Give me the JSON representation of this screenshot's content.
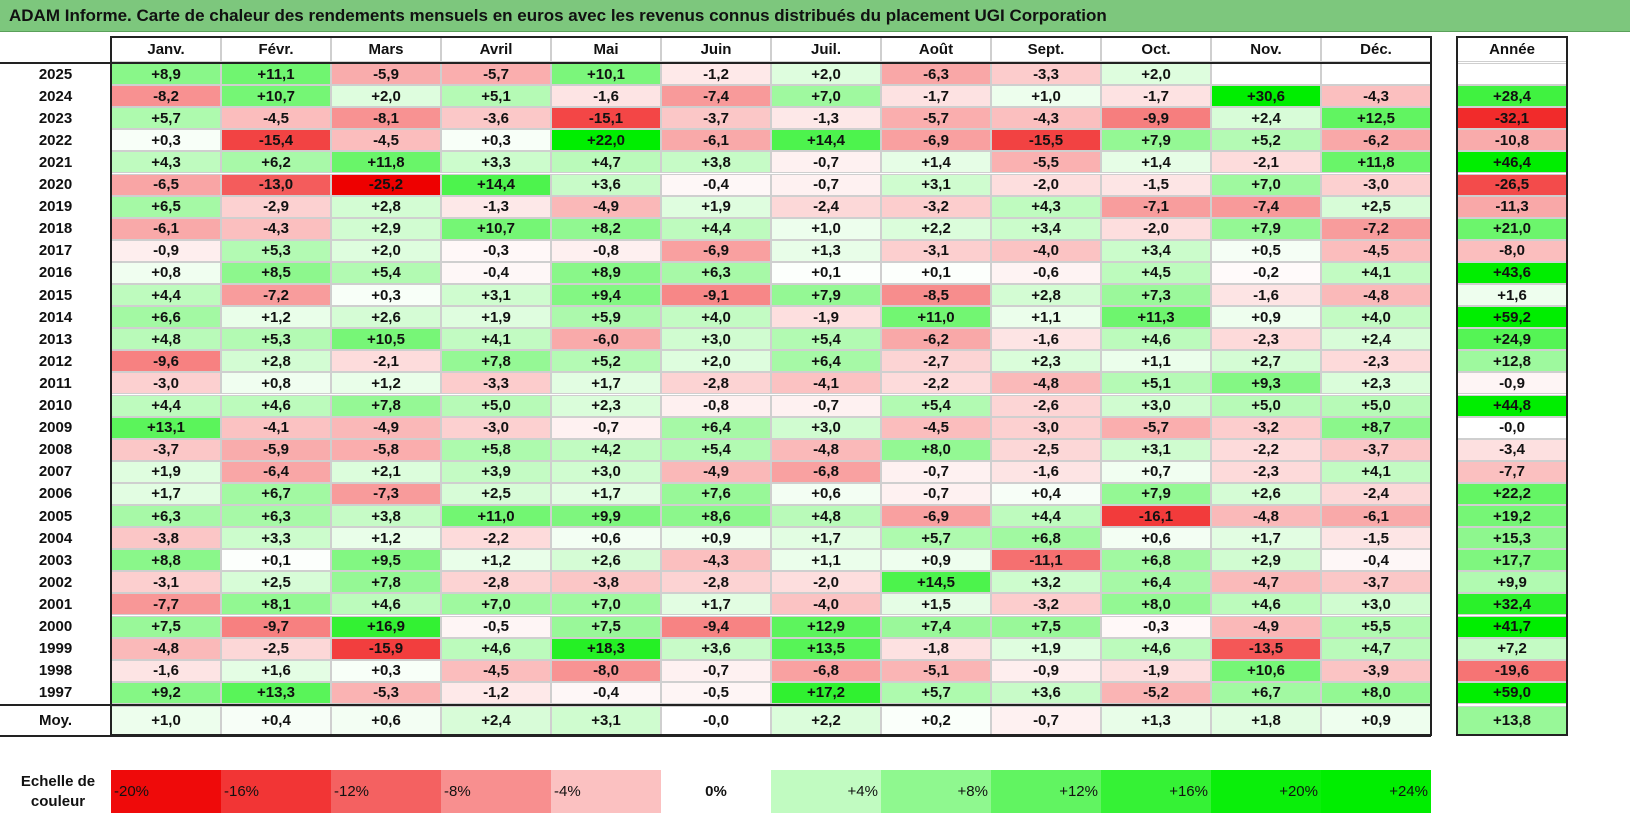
{
  "title": "ADAM Informe. Carte de chaleur des rendements mensuels en euros avec les revenus connus distribués du placement UGI Corporation",
  "chart_data": {
    "type": "heatmap",
    "title": "ADAM Informe. Carte de chaleur des rendements mensuels en euros avec les revenus connus distribués du placement UGI Corporation",
    "columns": [
      "Janv.",
      "Févr.",
      "Mars",
      "Avril",
      "Mai",
      "Juin",
      "Juil.",
      "Août",
      "Sept.",
      "Oct.",
      "Nov.",
      "Déc."
    ],
    "year_column_label": "Année",
    "average_row_label": "Moy.",
    "rows": [
      {
        "year": "2025",
        "values": [
          "+8,9",
          "+11,1",
          "-5,9",
          "-5,7",
          "+10,1",
          "-1,2",
          "+2,0",
          "-6,3",
          "-3,3",
          "+2,0",
          "",
          ""
        ],
        "annual": ""
      },
      {
        "year": "2024",
        "values": [
          "-8,2",
          "+10,7",
          "+2,0",
          "+5,1",
          "-1,6",
          "-7,4",
          "+7,0",
          "-1,7",
          "+1,0",
          "-1,7",
          "+30,6",
          "-4,3"
        ],
        "annual": "+28,4"
      },
      {
        "year": "2023",
        "values": [
          "+5,7",
          "-4,5",
          "-8,1",
          "-3,6",
          "-15,1",
          "-3,7",
          "-1,3",
          "-5,7",
          "-4,3",
          "-9,9",
          "+2,4",
          "+12,5"
        ],
        "annual": "-32,1"
      },
      {
        "year": "2022",
        "values": [
          "+0,3",
          "-15,4",
          "-4,5",
          "+0,3",
          "+22,0",
          "-6,1",
          "+14,4",
          "-6,9",
          "-15,5",
          "+7,9",
          "+5,2",
          "-6,2"
        ],
        "annual": "-10,8"
      },
      {
        "year": "2021",
        "values": [
          "+4,3",
          "+6,2",
          "+11,8",
          "+3,3",
          "+4,7",
          "+3,8",
          "-0,7",
          "+1,4",
          "-5,5",
          "+1,4",
          "-2,1",
          "+11,8"
        ],
        "annual": "+46,4"
      },
      {
        "year": "2020",
        "values": [
          "-6,5",
          "-13,0",
          "-25,2",
          "+14,4",
          "+3,6",
          "-0,4",
          "-0,7",
          "+3,1",
          "-2,0",
          "-1,5",
          "+7,0",
          "-3,0"
        ],
        "annual": "-26,5"
      },
      {
        "year": "2019",
        "values": [
          "+6,5",
          "-2,9",
          "+2,8",
          "-1,3",
          "-4,9",
          "+1,9",
          "-2,4",
          "-3,2",
          "+4,3",
          "-7,1",
          "-7,4",
          "+2,5"
        ],
        "annual": "-11,3"
      },
      {
        "year": "2018",
        "values": [
          "-6,1",
          "-4,3",
          "+2,9",
          "+10,7",
          "+8,2",
          "+4,4",
          "+1,0",
          "+2,2",
          "+3,4",
          "-2,0",
          "+7,9",
          "-7,2"
        ],
        "annual": "+21,0"
      },
      {
        "year": "2017",
        "values": [
          "-0,9",
          "+5,3",
          "+2,0",
          "-0,3",
          "-0,8",
          "-6,9",
          "+1,3",
          "-3,1",
          "-4,0",
          "+3,4",
          "+0,5",
          "-4,5"
        ],
        "annual": "-8,0"
      },
      {
        "year": "2016",
        "values": [
          "+0,8",
          "+8,5",
          "+5,4",
          "-0,4",
          "+8,9",
          "+6,3",
          "+0,1",
          "+0,1",
          "-0,6",
          "+4,5",
          "-0,2",
          "+4,1"
        ],
        "annual": "+43,6"
      },
      {
        "year": "2015",
        "values": [
          "+4,4",
          "-7,2",
          "+0,3",
          "+3,1",
          "+9,4",
          "-9,1",
          "+7,9",
          "-8,5",
          "+2,8",
          "+7,3",
          "-1,6",
          "-4,8"
        ],
        "annual": "+1,6"
      },
      {
        "year": "2014",
        "values": [
          "+6,6",
          "+1,2",
          "+2,6",
          "+1,9",
          "+5,9",
          "+4,0",
          "-1,9",
          "+11,0",
          "+1,1",
          "+11,3",
          "+0,9",
          "+4,0"
        ],
        "annual": "+59,2"
      },
      {
        "year": "2013",
        "values": [
          "+4,8",
          "+5,3",
          "+10,5",
          "+4,1",
          "-6,0",
          "+3,0",
          "+5,4",
          "-6,2",
          "-1,6",
          "+4,6",
          "-2,3",
          "+2,4"
        ],
        "annual": "+24,9"
      },
      {
        "year": "2012",
        "values": [
          "-9,6",
          "+2,8",
          "-2,1",
          "+7,8",
          "+5,2",
          "+2,0",
          "+6,4",
          "-2,7",
          "+2,3",
          "+1,1",
          "+2,7",
          "-2,3"
        ],
        "annual": "+12,8"
      },
      {
        "year": "2011",
        "values": [
          "-3,0",
          "+0,8",
          "+1,2",
          "-3,3",
          "+1,7",
          "-2,8",
          "-4,1",
          "-2,2",
          "-4,8",
          "+5,1",
          "+9,3",
          "+2,3"
        ],
        "annual": "-0,9"
      },
      {
        "year": "2010",
        "values": [
          "+4,4",
          "+4,6",
          "+7,8",
          "+5,0",
          "+2,3",
          "-0,8",
          "-0,7",
          "+5,4",
          "-2,6",
          "+3,0",
          "+5,0",
          "+5,0"
        ],
        "annual": "+44,8"
      },
      {
        "year": "2009",
        "values": [
          "+13,1",
          "-4,1",
          "-4,9",
          "-3,0",
          "-0,7",
          "+6,4",
          "+3,0",
          "-4,5",
          "-3,0",
          "-5,7",
          "-3,2",
          "+8,7"
        ],
        "annual": "-0,0"
      },
      {
        "year": "2008",
        "values": [
          "-3,7",
          "-5,9",
          "-5,8",
          "+5,8",
          "+4,2",
          "+5,4",
          "-4,8",
          "+8,0",
          "-2,5",
          "+3,1",
          "-2,2",
          "-3,7"
        ],
        "annual": "-3,4"
      },
      {
        "year": "2007",
        "values": [
          "+1,9",
          "-6,4",
          "+2,1",
          "+3,9",
          "+3,0",
          "-4,9",
          "-6,8",
          "-0,7",
          "-1,6",
          "+0,7",
          "-2,3",
          "+4,1"
        ],
        "annual": "-7,7"
      },
      {
        "year": "2006",
        "values": [
          "+1,7",
          "+6,7",
          "-7,3",
          "+2,5",
          "+1,7",
          "+7,6",
          "+0,6",
          "-0,7",
          "+0,4",
          "+7,9",
          "+2,6",
          "-2,4"
        ],
        "annual": "+22,2"
      },
      {
        "year": "2005",
        "values": [
          "+6,3",
          "+6,3",
          "+3,8",
          "+11,0",
          "+9,9",
          "+8,6",
          "+4,8",
          "-6,9",
          "+4,4",
          "-16,1",
          "-4,8",
          "-6,1"
        ],
        "annual": "+19,2"
      },
      {
        "year": "2004",
        "values": [
          "-3,8",
          "+3,3",
          "+1,2",
          "-2,2",
          "+0,6",
          "+0,9",
          "+1,7",
          "+5,7",
          "+6,8",
          "+0,6",
          "+1,7",
          "-1,5"
        ],
        "annual": "+15,3"
      },
      {
        "year": "2003",
        "values": [
          "+8,8",
          "+0,1",
          "+9,5",
          "+1,2",
          "+2,6",
          "-4,3",
          "+1,1",
          "+0,9",
          "-11,1",
          "+6,8",
          "+2,9",
          "-0,4"
        ],
        "annual": "+17,7"
      },
      {
        "year": "2002",
        "values": [
          "-3,1",
          "+2,5",
          "+7,8",
          "-2,8",
          "-3,8",
          "-2,8",
          "-2,0",
          "+14,5",
          "+3,2",
          "+6,4",
          "-4,7",
          "-3,7"
        ],
        "annual": "+9,9"
      },
      {
        "year": "2001",
        "values": [
          "-7,7",
          "+8,1",
          "+4,6",
          "+7,0",
          "+7,0",
          "+1,7",
          "-4,0",
          "+1,5",
          "-3,2",
          "+8,0",
          "+4,6",
          "+3,0"
        ],
        "annual": "+32,4"
      },
      {
        "year": "2000",
        "values": [
          "+7,5",
          "-9,7",
          "+16,9",
          "-0,5",
          "+7,5",
          "-9,4",
          "+12,9",
          "+7,4",
          "+7,5",
          "-0,3",
          "-4,9",
          "+5,5"
        ],
        "annual": "+41,7"
      },
      {
        "year": "1999",
        "values": [
          "-4,8",
          "-2,5",
          "-15,9",
          "+4,6",
          "+18,3",
          "+3,6",
          "+13,5",
          "-1,8",
          "+1,9",
          "+4,6",
          "-13,5",
          "+4,7"
        ],
        "annual": "+7,2"
      },
      {
        "year": "1998",
        "values": [
          "-1,6",
          "+1,6",
          "+0,3",
          "-4,5",
          "-8,0",
          "-0,7",
          "-6,8",
          "-5,1",
          "-0,9",
          "-1,9",
          "+10,6",
          "-3,9"
        ],
        "annual": "-19,6"
      },
      {
        "year": "1997",
        "values": [
          "+9,2",
          "+13,3",
          "-5,3",
          "-1,2",
          "-0,4",
          "-0,5",
          "+17,2",
          "+5,7",
          "+3,6",
          "-5,2",
          "+6,7",
          "+8,0"
        ],
        "annual": "+59,0"
      }
    ],
    "averages": [
      "+1,0",
      "+0,4",
      "+0,6",
      "+2,4",
      "+3,1",
      "-0,0",
      "+2,2",
      "+0,2",
      "-0,7",
      "+1,3",
      "+1,8",
      "+0,9"
    ],
    "average_annual": "+13,8",
    "legend": {
      "label": "Echelle de couleur",
      "stops": [
        "-20%",
        "-16%",
        "-12%",
        "-8%",
        "-4%",
        "0%",
        "+4%",
        "+8%",
        "+12%",
        "+16%",
        "+20%",
        "+24%"
      ],
      "stop_values": [
        -20,
        -16,
        -12,
        -8,
        -4,
        0,
        4,
        8,
        12,
        16,
        20,
        24
      ]
    },
    "colors": {
      "negative_max": "#ee0000",
      "positive_max": "#00ee00",
      "neutral": "#ffffff",
      "title_bar": "#7dc77d"
    }
  }
}
